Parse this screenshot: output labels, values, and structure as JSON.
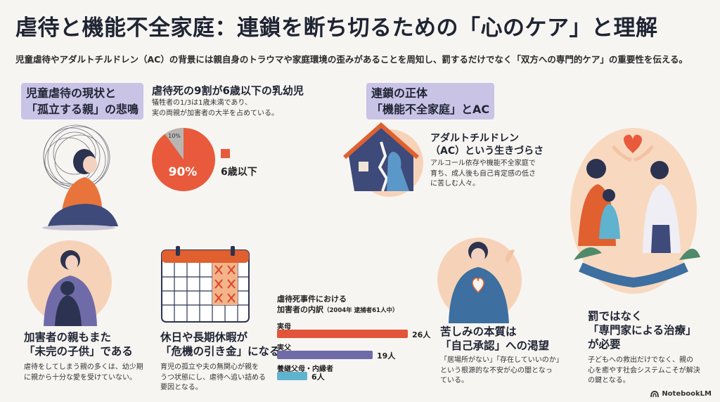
{
  "title": "虐待と機能不全家庭：連鎖を断ち切るための「心のケア」と理解",
  "subtitle": "児童虐待やアダルトチルドレン（AC）の背景には親自身のトラウマや家庭環境の歪みがあることを周知し、罰するだけでなく「双方への専門的ケア」の重要性を伝える。",
  "section1": {
    "tag_line1": "児童虐待の現状と",
    "tag_line2": "「孤立する親」の悲鳴"
  },
  "stat": {
    "heading": "虐待死の9割が6歳以下の乳幼児",
    "note_line1": "犠牲者の1/3は1歳未満であり、",
    "note_line2": "実の両親が加害者の大半を占めている。",
    "pie_big": "90%",
    "pie_small": "10%",
    "legend": "6歳以下"
  },
  "section2": {
    "tag_line1": "連鎖の正体",
    "tag_line2": "「機能不全家庭」とAC"
  },
  "ac": {
    "heading_line1": "アダルトチルドレン",
    "heading_line2": "（AC）という生きづらさ",
    "note_line1": "アルコール依存や機能不全家庭で",
    "note_line2": "育ち、成人後も自己肯定感の低さ",
    "note_line3": "に苦しむ人々。"
  },
  "parent": {
    "heading_line1": "加害者の親もまた",
    "heading_line2": "「未完の子供」である",
    "note_line1": "虐待をしてしまう親の多くは、幼少期",
    "note_line2": "に親から十分な愛を受けていない。"
  },
  "crisis": {
    "heading_line1": "休日や長期休暇が",
    "heading_line2": "「危機の引き金」になる",
    "note_line1": "育児の孤立や夫の無関心が親を",
    "note_line2": "うつ状態にし、虐待へ追い詰める",
    "note_line3": "要因となる。"
  },
  "bars": {
    "title_line1": "虐待死事件における",
    "title_line2": "加害者の内訳",
    "title_suffix": "（2004年 逮捕者61人中）"
  },
  "chart_data": {
    "type": "bar",
    "categories": [
      "実母",
      "実父",
      "養継父母・内縁者"
    ],
    "values": [
      26,
      19,
      6
    ],
    "value_labels": [
      "26人",
      "19人",
      "6人"
    ],
    "colors": [
      "#e2553a",
      "#6f6ba8",
      "#5fb3cf"
    ]
  },
  "suffer": {
    "heading_line1": "苦しみの本質は",
    "heading_line2": "「自己承認」への渇望",
    "note_line1": "「居場所がない」「存在していいのか」",
    "note_line2": "という根源的な不安が心の闇となっ",
    "note_line3": "ている。"
  },
  "care": {
    "heading_line1": "罰ではなく",
    "heading_line2": "「専門家による治療」",
    "heading_line3": "が必要",
    "note_line1": "子どもへの救出だけでなく、親の",
    "note_line2": "心を癒やす社会システムこそが解決",
    "note_line3": "の鍵となる。"
  },
  "logo": "NotebookLM"
}
